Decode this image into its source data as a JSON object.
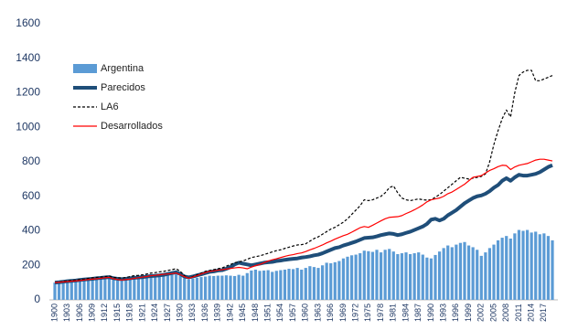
{
  "chart_data": {
    "type": "combo",
    "categories": [
      "1900",
      null,
      null,
      "1903",
      null,
      null,
      "1906",
      null,
      null,
      "1909",
      null,
      null,
      "1912",
      null,
      null,
      "1915",
      null,
      null,
      "1918",
      null,
      null,
      "1921",
      null,
      null,
      "1924",
      null,
      null,
      "1927",
      null,
      null,
      "1930",
      null,
      null,
      "1933",
      null,
      null,
      "1936",
      null,
      null,
      "1939",
      null,
      null,
      "1942",
      null,
      null,
      "1945",
      null,
      null,
      "1948",
      null,
      null,
      "1951",
      null,
      null,
      "1954",
      null,
      null,
      "1957",
      null,
      null,
      "1960",
      null,
      null,
      "1963",
      null,
      null,
      "1966",
      null,
      null,
      "1969",
      null,
      null,
      "1972",
      null,
      null,
      "1975",
      null,
      null,
      "1978",
      null,
      null,
      "1981",
      null,
      null,
      "1984",
      null,
      null,
      "1987",
      null,
      null,
      "1990",
      null,
      null,
      "1993",
      null,
      null,
      "1996",
      null,
      null,
      "1999",
      null,
      null,
      "2002",
      null,
      null,
      "2005",
      null,
      null,
      "2008",
      null,
      null,
      "2011",
      null,
      null,
      "2014",
      null,
      null,
      "2017",
      null,
      null
    ],
    "series": [
      {
        "name": "Argentina",
        "type": "bar",
        "color": "#5b9bd5",
        "values": [
          100,
          105,
          103,
          110,
          115,
          118,
          120,
          125,
          128,
          130,
          132,
          128,
          130,
          133,
          115,
          112,
          110,
          115,
          118,
          125,
          128,
          130,
          132,
          135,
          138,
          135,
          138,
          142,
          145,
          148,
          140,
          125,
          118,
          122,
          128,
          132,
          135,
          140,
          138,
          140,
          140,
          142,
          140,
          138,
          145,
          140,
          155,
          170,
          175,
          168,
          170,
          172,
          162,
          168,
          172,
          175,
          180,
          178,
          185,
          175,
          185,
          195,
          190,
          185,
          200,
          215,
          212,
          218,
          225,
          240,
          250,
          258,
          262,
          270,
          285,
          282,
          278,
          290,
          275,
          290,
          295,
          280,
          265,
          270,
          275,
          265,
          270,
          275,
          262,
          245,
          240,
          260,
          280,
          300,
          315,
          305,
          320,
          330,
          335,
          315,
          305,
          290,
          255,
          275,
          300,
          320,
          345,
          360,
          370,
          355,
          385,
          405,
          400,
          405,
          390,
          395,
          380,
          385,
          370,
          345
        ]
      },
      {
        "name": "Parecidos",
        "type": "line",
        "color": "#1f4e79",
        "line_width": 4,
        "values": [
          100,
          102,
          105,
          108,
          110,
          112,
          115,
          118,
          120,
          122,
          125,
          127,
          130,
          132,
          125,
          122,
          120,
          122,
          125,
          128,
          130,
          132,
          135,
          138,
          140,
          142,
          145,
          150,
          155,
          160,
          150,
          135,
          130,
          135,
          142,
          148,
          155,
          162,
          165,
          170,
          172,
          180,
          190,
          205,
          215,
          210,
          205,
          200,
          205,
          210,
          215,
          218,
          220,
          225,
          228,
          232,
          235,
          238,
          240,
          245,
          248,
          252,
          258,
          262,
          270,
          280,
          290,
          300,
          305,
          315,
          322,
          330,
          338,
          348,
          358,
          360,
          362,
          368,
          375,
          380,
          385,
          382,
          375,
          380,
          388,
          395,
          405,
          415,
          425,
          440,
          465,
          470,
          460,
          470,
          490,
          505,
          520,
          540,
          560,
          575,
          590,
          600,
          605,
          615,
          630,
          650,
          665,
          690,
          705,
          690,
          710,
          725,
          720,
          720,
          725,
          730,
          740,
          755,
          770,
          780
        ]
      },
      {
        "name": "LA6",
        "type": "line",
        "color": "#000000",
        "line_width": 1.2,
        "line_style": "dashed",
        "values": [
          100,
          103,
          106,
          110,
          112,
          115,
          118,
          120,
          124,
          128,
          130,
          132,
          135,
          138,
          130,
          128,
          126,
          130,
          135,
          140,
          142,
          145,
          150,
          155,
          158,
          162,
          165,
          170,
          175,
          180,
          165,
          140,
          125,
          135,
          145,
          155,
          165,
          170,
          175,
          180,
          185,
          195,
          205,
          215,
          220,
          225,
          235,
          245,
          250,
          255,
          262,
          270,
          278,
          285,
          290,
          298,
          305,
          312,
          318,
          320,
          325,
          340,
          355,
          365,
          380,
          395,
          410,
          420,
          435,
          450,
          470,
          495,
          520,
          545,
          580,
          575,
          580,
          590,
          600,
          620,
          650,
          660,
          620,
          590,
          580,
          575,
          580,
          585,
          580,
          578,
          580,
          595,
          610,
          630,
          650,
          670,
          690,
          710,
          705,
          700,
          705,
          710,
          715,
          730,
          800,
          900,
          980,
          1050,
          1100,
          1060,
          1200,
          1300,
          1320,
          1330,
          1330,
          1270,
          1270,
          1280,
          1290,
          1300
        ]
      },
      {
        "name": "Desarrollados",
        "type": "line",
        "color": "#ff0000",
        "line_width": 1.2,
        "values": [
          100,
          102,
          104,
          106,
          108,
          110,
          112,
          115,
          118,
          120,
          122,
          125,
          128,
          130,
          122,
          118,
          115,
          118,
          120,
          125,
          128,
          132,
          135,
          140,
          142,
          145,
          148,
          150,
          152,
          155,
          145,
          135,
          125,
          132,
          140,
          150,
          158,
          165,
          168,
          172,
          175,
          178,
          182,
          185,
          188,
          185,
          180,
          190,
          198,
          205,
          215,
          225,
          232,
          238,
          245,
          252,
          258,
          262,
          268,
          272,
          280,
          290,
          298,
          308,
          318,
          330,
          340,
          352,
          362,
          372,
          380,
          392,
          405,
          418,
          425,
          420,
          432,
          445,
          458,
          470,
          478,
          480,
          482,
          488,
          500,
          510,
          522,
          535,
          550,
          568,
          580,
          585,
          590,
          600,
          615,
          625,
          640,
          655,
          670,
          690,
          710,
          715,
          720,
          735,
          750,
          760,
          772,
          780,
          778,
          755,
          770,
          780,
          785,
          790,
          800,
          810,
          815,
          815,
          810,
          805
        ]
      }
    ],
    "ylim": [
      0,
      1600
    ],
    "yticks": [
      0,
      200,
      400,
      600,
      800,
      1000,
      1200,
      1400,
      1600
    ],
    "grid": false,
    "legend": "upper-left"
  }
}
